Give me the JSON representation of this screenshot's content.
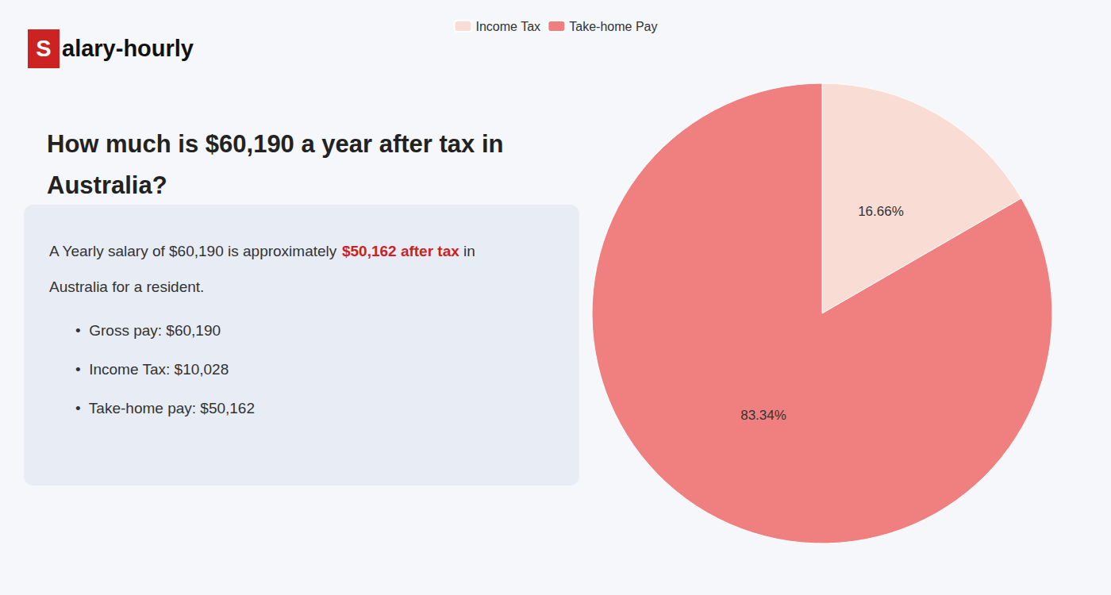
{
  "chart_data": {
    "type": "pie",
    "title": "How much is $60,190 a year after tax in\nAustralia?",
    "categories": [
      "Income Tax",
      "Take-home Pay"
    ],
    "values": [
      16.66,
      83.34
    ],
    "value_labels": [
      "16.66%",
      "83.34%"
    ],
    "data_labels": true,
    "colors": [
      "#f9ddd4",
      "#f08080"
    ],
    "legend": "top",
    "annotations": [
      "Salary-hourly",
      [
        "A Yearly salary of $60,190 is approximately ",
        "$50,162 after tax",
        " in"
      ],
      "Australia for a resident.",
      "•  Gross pay: $60,190",
      "•  Income Tax: $10,028",
      "•  Take-home pay: $50,162"
    ]
  }
}
